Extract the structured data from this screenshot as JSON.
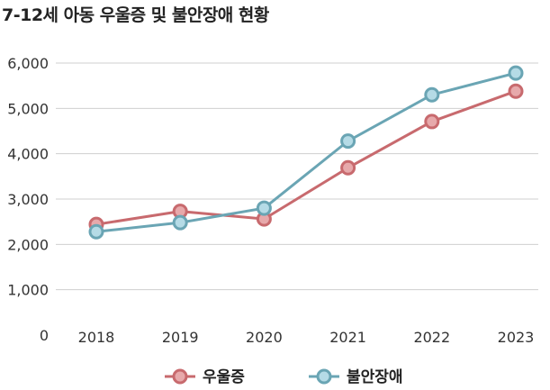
{
  "chart_data": {
    "type": "line",
    "title": "7-12세 아동 우울증 및 불안장애 현황",
    "categories": [
      "2018",
      "2019",
      "2020",
      "2021",
      "2022",
      "2023"
    ],
    "series": [
      {
        "name": "우울증",
        "values": [
          2440,
          2730,
          2560,
          3690,
          4710,
          5380
        ],
        "color": "#c86a6e",
        "marker_fill": "#e7a9ab"
      },
      {
        "name": "불안장애",
        "values": [
          2280,
          2480,
          2800,
          4280,
          5300,
          5780
        ],
        "color": "#6aa5b4",
        "marker_fill": "#b5dbe6"
      }
    ],
    "ylim": [
      0,
      6000
    ],
    "yticks": [
      0,
      1000,
      2000,
      3000,
      4000,
      5000,
      6000
    ],
    "ytick_labels": [
      "0",
      "1,000",
      "2,000",
      "3,000",
      "4,000",
      "5,000",
      "6,000"
    ],
    "grid": true,
    "legend": "bottom",
    "xlabel": "",
    "ylabel": ""
  }
}
